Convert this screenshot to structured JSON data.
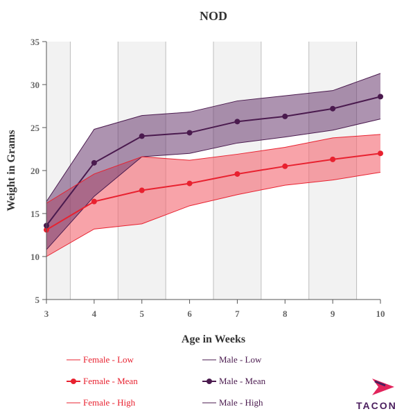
{
  "colors": {
    "female": "#e8212f",
    "female_band": "#f46570",
    "male": "#4a1a4e",
    "male_band": "#6a3a6f",
    "plot_band": "#f2f2f2",
    "grid": "#bdbdbd"
  },
  "logo": {
    "text": "TACON"
  },
  "chart_data": {
    "type": "line",
    "title": "NOD",
    "xlabel": "Age in Weeks",
    "ylabel": "Weight in Grams",
    "x": [
      3,
      4,
      5,
      6,
      7,
      8,
      9,
      10
    ],
    "xlim": [
      3,
      10
    ],
    "ylim": [
      5,
      35
    ],
    "yticks": [
      5,
      10,
      15,
      20,
      25,
      30,
      35
    ],
    "legend_position": "bottom",
    "series": [
      {
        "name": "Female - Low",
        "kind": "bound",
        "group": "female",
        "values": [
          10.0,
          13.2,
          13.8,
          15.9,
          17.2,
          18.3,
          18.9,
          19.8
        ]
      },
      {
        "name": "Male - Low",
        "kind": "bound",
        "group": "male",
        "values": [
          10.8,
          17.0,
          21.6,
          22.0,
          23.2,
          23.9,
          24.7,
          26.0
        ]
      },
      {
        "name": "Female - Mean",
        "kind": "mean",
        "group": "female",
        "values": [
          13.1,
          16.4,
          17.7,
          18.5,
          19.6,
          20.5,
          21.3,
          22.0
        ]
      },
      {
        "name": "Male - Mean",
        "kind": "mean",
        "group": "male",
        "values": [
          13.6,
          20.9,
          24.0,
          24.4,
          25.7,
          26.3,
          27.2,
          28.6
        ]
      },
      {
        "name": "Female - High",
        "kind": "bound",
        "group": "female",
        "values": [
          16.2,
          19.6,
          21.6,
          21.2,
          21.9,
          22.7,
          23.8,
          24.2
        ]
      },
      {
        "name": "Male - High",
        "kind": "bound",
        "group": "male",
        "values": [
          16.4,
          24.8,
          26.4,
          26.8,
          28.1,
          28.7,
          29.3,
          31.3
        ]
      }
    ]
  }
}
